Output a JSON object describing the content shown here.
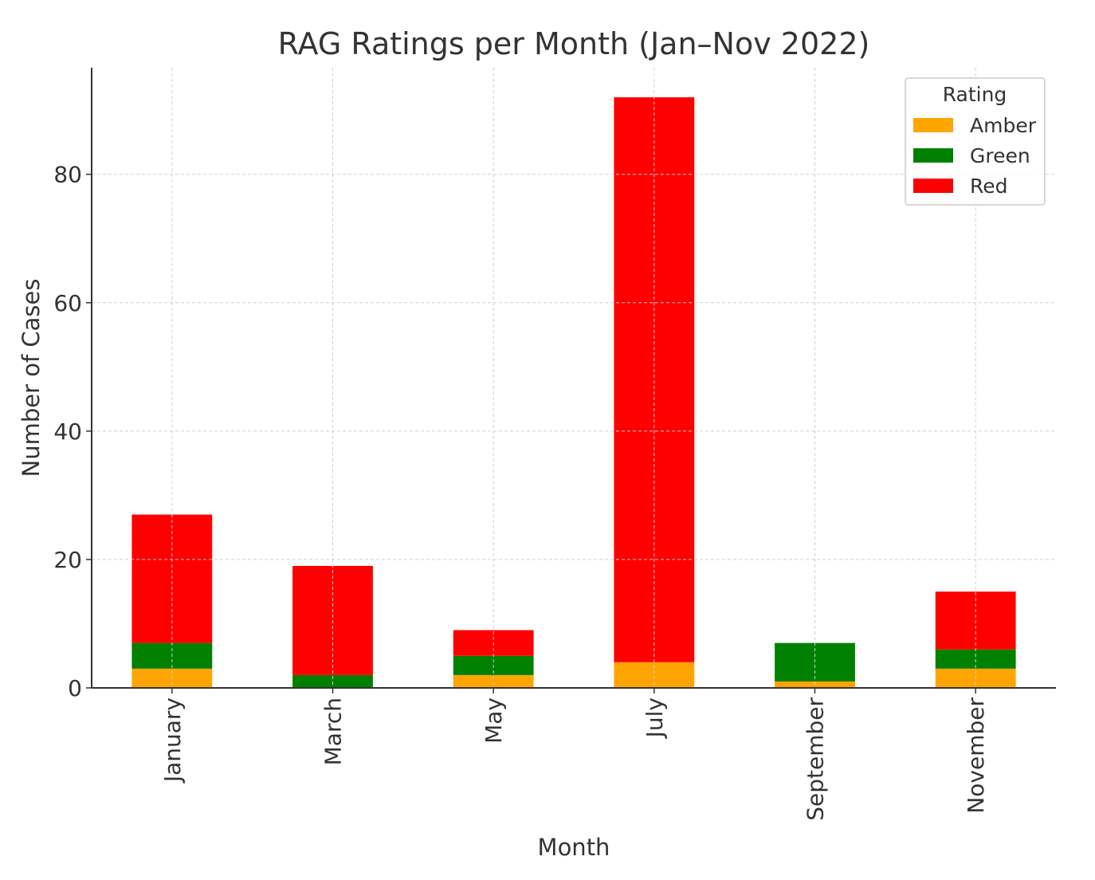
{
  "chart_data": {
    "type": "bar",
    "stacked": true,
    "title": "RAG Ratings per Month (Jan–Nov 2022)",
    "xlabel": "Month",
    "ylabel": "Number of Cases",
    "categories": [
      "January",
      "March",
      "May",
      "July",
      "September",
      "November"
    ],
    "series": [
      {
        "name": "Amber",
        "color": "#ffa500",
        "values": [
          3,
          0,
          2,
          4,
          1,
          3
        ]
      },
      {
        "name": "Green",
        "color": "#008000",
        "values": [
          4,
          2,
          3,
          0,
          6,
          3
        ]
      },
      {
        "name": "Red",
        "color": "#ff0000",
        "values": [
          20,
          17,
          4,
          88,
          0,
          9
        ]
      }
    ],
    "ylim": [
      0,
      96.6
    ],
    "yticks": [
      0,
      20,
      40,
      60,
      80
    ],
    "grid": true,
    "legend": {
      "title": "Rating",
      "placement": "top-right"
    }
  }
}
